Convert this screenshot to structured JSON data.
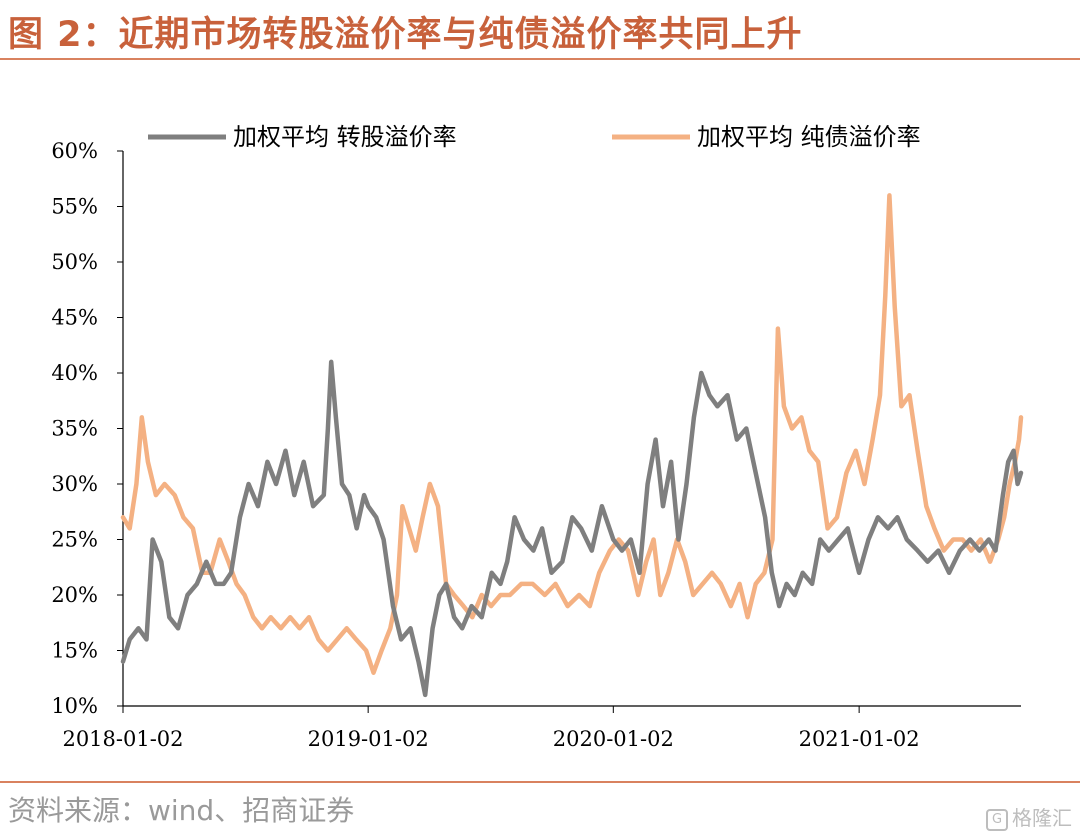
{
  "figure": {
    "title": "图 2：近期市场转股溢价率与纯债溢价率共同上升",
    "source": "资料来源：wind、招商证券",
    "watermark": "格隆汇"
  },
  "chart_data": {
    "type": "line",
    "title": "图 2：近期市场转股溢价率与纯债溢价率共同上升",
    "xlabel": "",
    "ylabel": "",
    "x_range": [
      "2018-01-02",
      "2021-08-31"
    ],
    "x_ticks": [
      "2018-01-02",
      "2019-01-02",
      "2020-01-02",
      "2021-01-02"
    ],
    "ylim": [
      0.1,
      0.6
    ],
    "y_ticks": [
      0.1,
      0.15,
      0.2,
      0.25,
      0.3,
      0.35,
      0.4,
      0.45,
      0.5,
      0.55,
      0.6
    ],
    "y_tick_labels": [
      "10%",
      "15%",
      "20%",
      "25%",
      "30%",
      "35%",
      "40%",
      "45%",
      "50%",
      "55%",
      "60%"
    ],
    "grid": false,
    "legend_position": "top",
    "series": [
      {
        "name": "加权平均 转股溢价率",
        "color": "#7f7f7f",
        "points": [
          [
            "2018-01-02",
            0.14
          ],
          [
            "2018-01-12",
            0.16
          ],
          [
            "2018-01-25",
            0.17
          ],
          [
            "2018-02-06",
            0.16
          ],
          [
            "2018-02-15",
            0.25
          ],
          [
            "2018-02-28",
            0.23
          ],
          [
            "2018-03-12",
            0.18
          ],
          [
            "2018-03-25",
            0.17
          ],
          [
            "2018-04-08",
            0.2
          ],
          [
            "2018-04-22",
            0.21
          ],
          [
            "2018-05-06",
            0.23
          ],
          [
            "2018-05-20",
            0.21
          ],
          [
            "2018-06-01",
            0.21
          ],
          [
            "2018-06-12",
            0.22
          ],
          [
            "2018-06-25",
            0.27
          ],
          [
            "2018-07-08",
            0.3
          ],
          [
            "2018-07-22",
            0.28
          ],
          [
            "2018-08-05",
            0.32
          ],
          [
            "2018-08-18",
            0.3
          ],
          [
            "2018-09-01",
            0.33
          ],
          [
            "2018-09-14",
            0.29
          ],
          [
            "2018-09-28",
            0.32
          ],
          [
            "2018-10-12",
            0.28
          ],
          [
            "2018-10-28",
            0.29
          ],
          [
            "2018-11-03",
            0.35
          ],
          [
            "2018-11-08",
            0.41
          ],
          [
            "2018-11-15",
            0.36
          ],
          [
            "2018-11-24",
            0.3
          ],
          [
            "2018-12-05",
            0.29
          ],
          [
            "2018-12-16",
            0.26
          ],
          [
            "2018-12-27",
            0.29
          ],
          [
            "2019-01-02",
            0.28
          ],
          [
            "2019-01-14",
            0.27
          ],
          [
            "2019-01-25",
            0.25
          ],
          [
            "2019-02-08",
            0.19
          ],
          [
            "2019-02-20",
            0.16
          ],
          [
            "2019-03-06",
            0.17
          ],
          [
            "2019-03-18",
            0.14
          ],
          [
            "2019-03-28",
            0.11
          ],
          [
            "2019-04-08",
            0.17
          ],
          [
            "2019-04-18",
            0.2
          ],
          [
            "2019-04-28",
            0.21
          ],
          [
            "2019-05-10",
            0.18
          ],
          [
            "2019-05-22",
            0.17
          ],
          [
            "2019-06-05",
            0.19
          ],
          [
            "2019-06-20",
            0.18
          ],
          [
            "2019-07-05",
            0.22
          ],
          [
            "2019-07-18",
            0.21
          ],
          [
            "2019-07-28",
            0.23
          ],
          [
            "2019-08-08",
            0.27
          ],
          [
            "2019-08-22",
            0.25
          ],
          [
            "2019-09-05",
            0.24
          ],
          [
            "2019-09-18",
            0.26
          ],
          [
            "2019-10-02",
            0.22
          ],
          [
            "2019-10-18",
            0.23
          ],
          [
            "2019-11-02",
            0.27
          ],
          [
            "2019-11-15",
            0.26
          ],
          [
            "2019-12-01",
            0.24
          ],
          [
            "2019-12-16",
            0.28
          ],
          [
            "2020-01-02",
            0.25
          ],
          [
            "2020-01-15",
            0.24
          ],
          [
            "2020-01-28",
            0.25
          ],
          [
            "2020-02-10",
            0.22
          ],
          [
            "2020-02-22",
            0.3
          ],
          [
            "2020-03-05",
            0.34
          ],
          [
            "2020-03-16",
            0.28
          ],
          [
            "2020-03-28",
            0.32
          ],
          [
            "2020-04-08",
            0.25
          ],
          [
            "2020-04-20",
            0.3
          ],
          [
            "2020-05-01",
            0.36
          ],
          [
            "2020-05-12",
            0.4
          ],
          [
            "2020-05-24",
            0.38
          ],
          [
            "2020-06-05",
            0.37
          ],
          [
            "2020-06-20",
            0.38
          ],
          [
            "2020-07-04",
            0.34
          ],
          [
            "2020-07-18",
            0.35
          ],
          [
            "2020-08-01",
            0.31
          ],
          [
            "2020-08-15",
            0.27
          ],
          [
            "2020-08-25",
            0.22
          ],
          [
            "2020-09-05",
            0.19
          ],
          [
            "2020-09-16",
            0.21
          ],
          [
            "2020-09-28",
            0.2
          ],
          [
            "2020-10-10",
            0.22
          ],
          [
            "2020-10-24",
            0.21
          ],
          [
            "2020-11-05",
            0.25
          ],
          [
            "2020-11-18",
            0.24
          ],
          [
            "2020-12-02",
            0.25
          ],
          [
            "2020-12-16",
            0.26
          ],
          [
            "2021-01-02",
            0.22
          ],
          [
            "2021-01-16",
            0.25
          ],
          [
            "2021-01-30",
            0.27
          ],
          [
            "2021-02-14",
            0.26
          ],
          [
            "2021-02-28",
            0.27
          ],
          [
            "2021-03-14",
            0.25
          ],
          [
            "2021-03-30",
            0.24
          ],
          [
            "2021-04-14",
            0.23
          ],
          [
            "2021-04-30",
            0.24
          ],
          [
            "2021-05-16",
            0.22
          ],
          [
            "2021-06-01",
            0.24
          ],
          [
            "2021-06-16",
            0.25
          ],
          [
            "2021-06-30",
            0.24
          ],
          [
            "2021-07-14",
            0.25
          ],
          [
            "2021-07-24",
            0.24
          ],
          [
            "2021-08-04",
            0.29
          ],
          [
            "2021-08-12",
            0.32
          ],
          [
            "2021-08-20",
            0.33
          ],
          [
            "2021-08-26",
            0.3
          ],
          [
            "2021-08-31",
            0.31
          ]
        ]
      },
      {
        "name": "加权平均 纯债溢价率",
        "color": "#f4b183",
        "points": [
          [
            "2018-01-02",
            0.27
          ],
          [
            "2018-01-12",
            0.26
          ],
          [
            "2018-01-22",
            0.3
          ],
          [
            "2018-01-30",
            0.36
          ],
          [
            "2018-02-08",
            0.32
          ],
          [
            "2018-02-20",
            0.29
          ],
          [
            "2018-03-05",
            0.3
          ],
          [
            "2018-03-20",
            0.29
          ],
          [
            "2018-04-02",
            0.27
          ],
          [
            "2018-04-16",
            0.26
          ],
          [
            "2018-04-30",
            0.22
          ],
          [
            "2018-05-12",
            0.22
          ],
          [
            "2018-05-26",
            0.25
          ],
          [
            "2018-06-08",
            0.23
          ],
          [
            "2018-06-20",
            0.21
          ],
          [
            "2018-07-02",
            0.2
          ],
          [
            "2018-07-15",
            0.18
          ],
          [
            "2018-07-28",
            0.17
          ],
          [
            "2018-08-10",
            0.18
          ],
          [
            "2018-08-25",
            0.17
          ],
          [
            "2018-09-08",
            0.18
          ],
          [
            "2018-09-22",
            0.17
          ],
          [
            "2018-10-06",
            0.18
          ],
          [
            "2018-10-20",
            0.16
          ],
          [
            "2018-11-03",
            0.15
          ],
          [
            "2018-11-17",
            0.16
          ],
          [
            "2018-12-01",
            0.17
          ],
          [
            "2018-12-15",
            0.16
          ],
          [
            "2018-12-30",
            0.15
          ],
          [
            "2019-01-10",
            0.13
          ],
          [
            "2019-01-22",
            0.15
          ],
          [
            "2019-02-04",
            0.17
          ],
          [
            "2019-02-14",
            0.2
          ],
          [
            "2019-02-22",
            0.28
          ],
          [
            "2019-03-04",
            0.26
          ],
          [
            "2019-03-14",
            0.24
          ],
          [
            "2019-03-24",
            0.27
          ],
          [
            "2019-04-04",
            0.3
          ],
          [
            "2019-04-16",
            0.28
          ],
          [
            "2019-04-28",
            0.21
          ],
          [
            "2019-05-10",
            0.2
          ],
          [
            "2019-05-24",
            0.19
          ],
          [
            "2019-06-06",
            0.18
          ],
          [
            "2019-06-20",
            0.2
          ],
          [
            "2019-07-04",
            0.19
          ],
          [
            "2019-07-18",
            0.2
          ],
          [
            "2019-08-01",
            0.2
          ],
          [
            "2019-08-18",
            0.21
          ],
          [
            "2019-09-04",
            0.21
          ],
          [
            "2019-09-22",
            0.2
          ],
          [
            "2019-10-08",
            0.21
          ],
          [
            "2019-10-26",
            0.19
          ],
          [
            "2019-11-12",
            0.2
          ],
          [
            "2019-11-28",
            0.19
          ],
          [
            "2019-12-12",
            0.22
          ],
          [
            "2019-12-28",
            0.24
          ],
          [
            "2020-01-10",
            0.25
          ],
          [
            "2020-01-24",
            0.24
          ],
          [
            "2020-02-08",
            0.2
          ],
          [
            "2020-02-20",
            0.23
          ],
          [
            "2020-03-02",
            0.25
          ],
          [
            "2020-03-12",
            0.2
          ],
          [
            "2020-03-24",
            0.22
          ],
          [
            "2020-04-06",
            0.25
          ],
          [
            "2020-04-18",
            0.23
          ],
          [
            "2020-04-30",
            0.2
          ],
          [
            "2020-05-14",
            0.21
          ],
          [
            "2020-05-28",
            0.22
          ],
          [
            "2020-06-10",
            0.21
          ],
          [
            "2020-06-25",
            0.19
          ],
          [
            "2020-07-08",
            0.21
          ],
          [
            "2020-07-20",
            0.18
          ],
          [
            "2020-08-01",
            0.21
          ],
          [
            "2020-08-14",
            0.22
          ],
          [
            "2020-08-26",
            0.25
          ],
          [
            "2020-09-03",
            0.44
          ],
          [
            "2020-09-12",
            0.37
          ],
          [
            "2020-09-24",
            0.35
          ],
          [
            "2020-10-08",
            0.36
          ],
          [
            "2020-10-20",
            0.33
          ],
          [
            "2020-11-02",
            0.32
          ],
          [
            "2020-11-16",
            0.26
          ],
          [
            "2020-11-30",
            0.27
          ],
          [
            "2020-12-14",
            0.31
          ],
          [
            "2020-12-28",
            0.33
          ],
          [
            "2021-01-10",
            0.3
          ],
          [
            "2021-01-22",
            0.34
          ],
          [
            "2021-02-02",
            0.38
          ],
          [
            "2021-02-10",
            0.47
          ],
          [
            "2021-02-16",
            0.56
          ],
          [
            "2021-02-24",
            0.46
          ],
          [
            "2021-03-06",
            0.37
          ],
          [
            "2021-03-18",
            0.38
          ],
          [
            "2021-03-30",
            0.33
          ],
          [
            "2021-04-12",
            0.28
          ],
          [
            "2021-04-24",
            0.26
          ],
          [
            "2021-05-08",
            0.24
          ],
          [
            "2021-05-22",
            0.25
          ],
          [
            "2021-06-05",
            0.25
          ],
          [
            "2021-06-18",
            0.24
          ],
          [
            "2021-07-02",
            0.25
          ],
          [
            "2021-07-16",
            0.23
          ],
          [
            "2021-07-28",
            0.25
          ],
          [
            "2021-08-06",
            0.27
          ],
          [
            "2021-08-14",
            0.3
          ],
          [
            "2021-08-22",
            0.32
          ],
          [
            "2021-08-28",
            0.34
          ],
          [
            "2021-08-31",
            0.36
          ]
        ]
      }
    ]
  }
}
